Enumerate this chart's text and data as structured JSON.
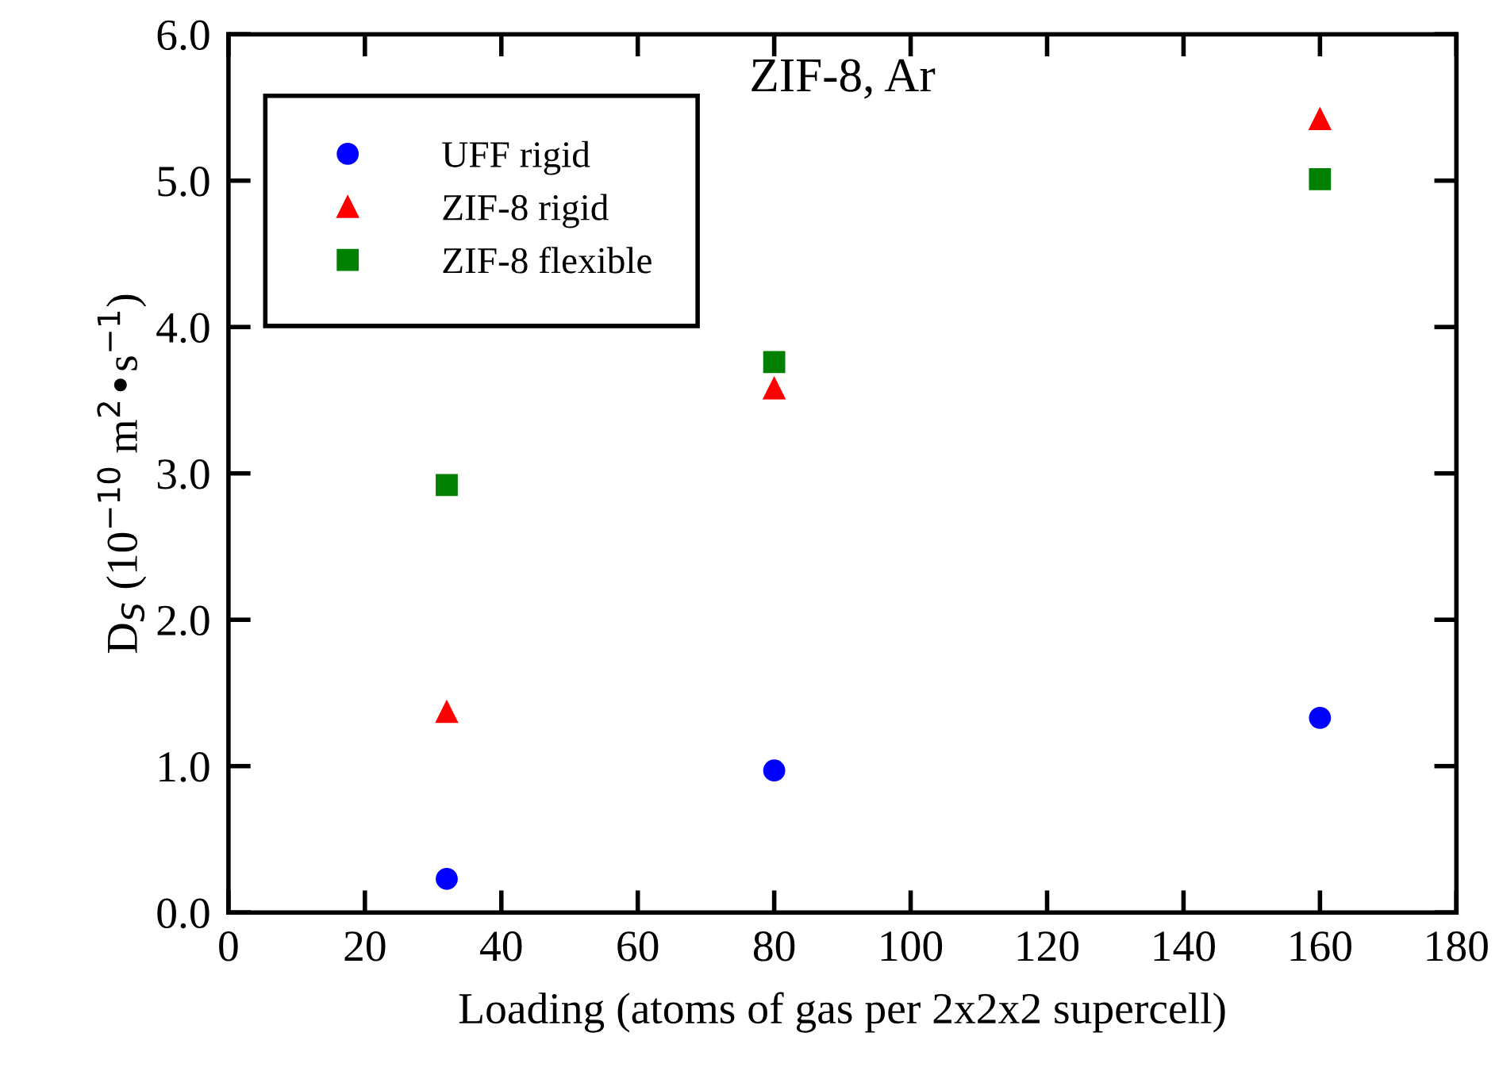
{
  "chart_data": {
    "type": "scatter",
    "title": "ZIF-8, Ar",
    "xlabel": "Loading (atoms of gas per 2x2x2 supercell)",
    "ylabel": "D$_{S}$ (10$^{−10}$ m$^{2}$•s$^{−1}$)",
    "x": [
      32,
      80,
      160
    ],
    "series": [
      {
        "name": "UFF rigid",
        "color": "#0000ff",
        "marker": "circle",
        "values": [
          0.23,
          0.97,
          1.33
        ]
      },
      {
        "name": "ZIF-8 rigid",
        "color": "#ff0000",
        "marker": "triangle",
        "values": [
          1.37,
          3.58,
          5.42
        ]
      },
      {
        "name": "ZIF-8 flexible",
        "color": "#008000",
        "marker": "square",
        "values": [
          2.92,
          3.76,
          5.01
        ]
      }
    ],
    "xlim": [
      0,
      180
    ],
    "xticks": [
      0,
      20,
      40,
      60,
      80,
      100,
      120,
      140,
      160,
      180
    ],
    "ylim": [
      0,
      6
    ],
    "yticks": [
      {
        "value": 0,
        "label": "0.0"
      },
      {
        "value": 1,
        "label": "1.0"
      },
      {
        "value": 2,
        "label": "2.0"
      },
      {
        "value": 3,
        "label": "3.0"
      },
      {
        "value": 4,
        "label": "4.0"
      },
      {
        "value": 5,
        "label": "5.0"
      },
      {
        "value": 6,
        "label": "6.0"
      }
    ],
    "legend": "top left",
    "grid": false
  }
}
